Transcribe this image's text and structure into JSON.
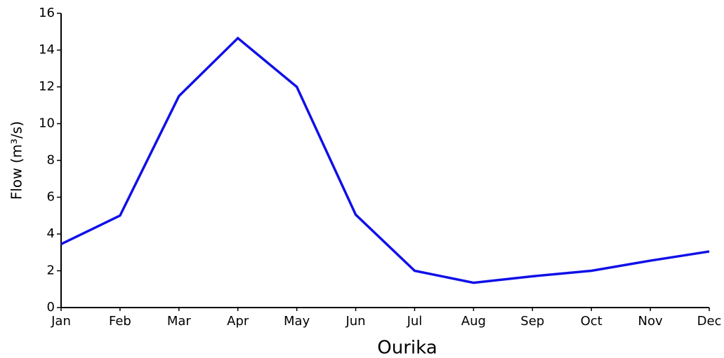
{
  "chart_data": {
    "type": "line",
    "xlabel": "Ourika",
    "ylabel": "Flow (m³/s)",
    "categories": [
      "Jan",
      "Feb",
      "Mar",
      "Apr",
      "May",
      "Jun",
      "Jul",
      "Aug",
      "Sep",
      "Oct",
      "Nov",
      "Dec"
    ],
    "series": [
      {
        "name": "Ourika",
        "color": "#1010e8",
        "values": [
          3.45,
          5.0,
          11.5,
          14.65,
          12.0,
          5.05,
          2.0,
          1.35,
          1.7,
          2.0,
          2.55,
          3.05
        ]
      }
    ],
    "ylim": [
      0,
      16
    ],
    "yticks": [
      0,
      2,
      4,
      6,
      8,
      10,
      12,
      14,
      16
    ],
    "grid": false
  }
}
